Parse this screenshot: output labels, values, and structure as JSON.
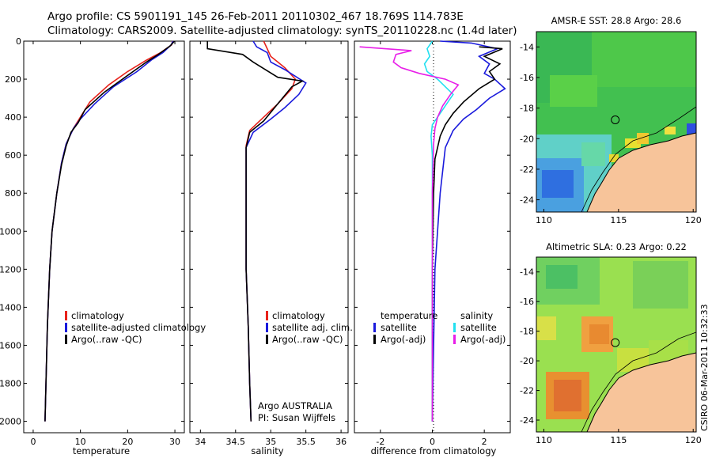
{
  "header": {
    "line1": "Argo profile: CS 5901191_145 26-Feb-2011 20110302_467 18.769S 114.783E",
    "line2": "Climatology: CARS2009. Satellite-adjusted climatology: synTS_20110228.nc (1.4d later)"
  },
  "colors": {
    "climatology": "#e8231c",
    "satellite": "#1a1adc",
    "argo": "#000000",
    "salinity_satellite": "#22e0f0",
    "salinity_argo": "#e81ee8",
    "land": "#f7c49a"
  },
  "chart_data": [
    {
      "type": "line",
      "xlabel": "temperature",
      "xlim": [
        -2,
        32
      ],
      "ylim": [
        2060,
        0
      ],
      "xticks": [
        0,
        10,
        20,
        30
      ],
      "xtick_labels": [
        "0",
        "10",
        "20",
        "30"
      ],
      "yticks": [
        0,
        200,
        400,
        600,
        800,
        1000,
        1200,
        1400,
        1600,
        1800,
        2000
      ],
      "ytick_labels": [
        "0",
        "200",
        "400",
        "600",
        "800",
        "1000",
        "1200",
        "1400",
        "1600",
        "1800",
        "2000"
      ],
      "legend": [
        "climatology",
        "satellite-adjusted climatology",
        "Argo(..raw -QC)"
      ],
      "series": [
        {
          "name": "climatology",
          "color": "#e8231c",
          "x": [
            29.5,
            29.3,
            27,
            24,
            20,
            16,
            12,
            10,
            8.5,
            7,
            6,
            5,
            4,
            3.5,
            3,
            2.7,
            2.5
          ],
          "y": [
            0,
            20,
            60,
            100,
            160,
            230,
            320,
            400,
            460,
            540,
            640,
            800,
            1000,
            1200,
            1500,
            1800,
            2000
          ]
        },
        {
          "name": "satellite-adjusted climatology",
          "color": "#1a1adc",
          "x": [
            29.6,
            29.2,
            27.5,
            25,
            22,
            17,
            13,
            10,
            8.5,
            7,
            6,
            5,
            4,
            3.5,
            3,
            2.7,
            2.5
          ],
          "y": [
            0,
            20,
            60,
            100,
            160,
            240,
            330,
            410,
            460,
            540,
            640,
            800,
            1000,
            1200,
            1500,
            1800,
            2000
          ]
        },
        {
          "name": "Argo(..raw -QC)",
          "color": "#000000",
          "x": [
            29.9,
            29.0,
            26.5,
            24,
            20,
            15,
            11,
            9.5,
            8,
            7,
            6,
            5,
            4,
            3.5,
            3,
            2.7,
            2.5
          ],
          "y": [
            0,
            25,
            70,
            110,
            180,
            270,
            360,
            430,
            480,
            550,
            650,
            800,
            1000,
            1200,
            1500,
            1800,
            2000
          ]
        }
      ]
    },
    {
      "type": "line",
      "xlabel": "salinity",
      "xlim": [
        33.85,
        36.1
      ],
      "ylim": [
        2060,
        0
      ],
      "xticks": [
        34,
        34.5,
        35,
        35.5,
        36
      ],
      "xtick_labels": [
        "34",
        "34.5",
        "35",
        "35.5",
        "36"
      ],
      "legend": [
        "climatology",
        "satellite adj. clim.",
        "Argo(..raw -QC)"
      ],
      "annotations": [
        "Argo AUSTRALIA",
        "PI: Susan Wijffels"
      ],
      "series": [
        {
          "name": "climatology",
          "color": "#e8231c",
          "x": [
            34.9,
            34.95,
            35.0,
            35.1,
            35.2,
            35.35,
            35.3,
            35.1,
            34.9,
            34.7,
            34.65,
            34.65,
            34.65,
            34.65,
            34.68,
            34.7,
            34.72
          ],
          "y": [
            0,
            40,
            80,
            110,
            140,
            200,
            250,
            330,
            400,
            470,
            550,
            800,
            1000,
            1200,
            1500,
            1800,
            2000
          ]
        },
        {
          "name": "satellite adj. clim.",
          "color": "#1a1adc",
          "x": [
            34.75,
            34.8,
            34.95,
            35.0,
            35.2,
            35.5,
            35.4,
            35.2,
            35.0,
            34.75,
            34.65,
            34.65,
            34.65,
            34.65,
            34.68,
            34.7,
            34.72
          ],
          "y": [
            0,
            30,
            60,
            110,
            150,
            220,
            280,
            350,
            410,
            480,
            560,
            800,
            1000,
            1200,
            1500,
            1800,
            2000
          ]
        },
        {
          "name": "Argo(..raw -QC)",
          "color": "#000000",
          "x": [
            34.1,
            34.1,
            34.6,
            34.75,
            35.1,
            35.45,
            35.3,
            35.1,
            34.9,
            34.7,
            34.65,
            34.65,
            34.65,
            34.65,
            34.68,
            34.7,
            34.72
          ],
          "y": [
            0,
            40,
            70,
            110,
            190,
            210,
            240,
            330,
            420,
            480,
            560,
            800,
            1000,
            1200,
            1500,
            1800,
            2000
          ]
        }
      ]
    },
    {
      "type": "line",
      "xlabel": "difference from climatology",
      "xlim": [
        -3,
        3
      ],
      "ylim": [
        2060,
        0
      ],
      "xticks": [
        -2,
        0,
        2
      ],
      "xtick_labels": [
        "-2",
        "0",
        "2"
      ],
      "legend_groups": [
        {
          "title": "temperature",
          "entries": [
            "satellite",
            "Argo(-adj)"
          ]
        },
        {
          "title": "salinity",
          "entries": [
            "satellite",
            "Argo(-adj)"
          ]
        }
      ],
      "series": [
        {
          "name": "temperature satellite",
          "color": "#1a1adc",
          "x": [
            0.3,
            1.5,
            2.5,
            1.8,
            2.2,
            2.0,
            2.4,
            2.8,
            2.2,
            1.7,
            1.2,
            0.8,
            0.5,
            0.3,
            0.1,
            0.05,
            0.0
          ],
          "y": [
            0,
            10,
            40,
            80,
            120,
            170,
            200,
            250,
            300,
            360,
            410,
            470,
            560,
            800,
            1200,
            1600,
            2000
          ]
        },
        {
          "name": "temperature Argo(-adj)",
          "color": "#000000",
          "x": [
            1.8,
            2.7,
            2.0,
            2.6,
            2.2,
            2.4,
            1.8,
            1.2,
            0.8,
            0.5,
            0.3,
            0.2,
            0.1,
            0.05,
            0.0,
            0.0,
            0.0
          ],
          "y": [
            30,
            40,
            80,
            120,
            160,
            200,
            250,
            320,
            380,
            440,
            500,
            560,
            620,
            800,
            1200,
            1600,
            2000
          ]
        },
        {
          "name": "salinity satellite",
          "color": "#22e0f0",
          "x": [
            0.0,
            -0.2,
            -0.1,
            -0.3,
            -0.2,
            0.2,
            0.5,
            0.8,
            0.6,
            0.3,
            0.0,
            -0.05,
            0.0,
            0.0,
            0.0,
            0.0,
            0.0
          ],
          "y": [
            0,
            40,
            80,
            120,
            160,
            200,
            240,
            280,
            320,
            380,
            440,
            500,
            600,
            800,
            1200,
            1600,
            2000
          ]
        },
        {
          "name": "salinity Argo(-adj)",
          "color": "#e81ee8",
          "x": [
            -2.8,
            -0.8,
            -1.4,
            -1.5,
            -1.2,
            -0.5,
            0.5,
            1.0,
            0.7,
            0.4,
            0.2,
            0.1,
            0.05,
            0.0,
            0.0,
            0.0,
            0.0
          ],
          "y": [
            30,
            50,
            70,
            110,
            140,
            170,
            200,
            230,
            280,
            340,
            400,
            460,
            540,
            800,
            1200,
            1600,
            2000
          ]
        }
      ]
    },
    {
      "type": "heatmap",
      "title": "AMSR-E SST: 28.8 Argo: 28.6",
      "xlim": [
        109.5,
        120.2
      ],
      "ylim": [
        -24.8,
        -13.0
      ],
      "xticks": [
        110,
        115,
        120
      ],
      "yticks": [
        -14,
        -16,
        -18,
        -20,
        -22,
        -24
      ],
      "xtick_labels": [
        "110",
        "115",
        "120"
      ],
      "ytick_labels": [
        "-14",
        "-16",
        "-18",
        "-20",
        "-22",
        "-24"
      ],
      "marker": {
        "lon": 114.78,
        "lat": -18.77
      }
    },
    {
      "type": "heatmap",
      "title": "Altimetric SLA: 0.23 Argo: 0.22",
      "xlim": [
        109.5,
        120.2
      ],
      "ylim": [
        -24.8,
        -13.0
      ],
      "xticks": [
        110,
        115,
        120
      ],
      "yticks": [
        -14,
        -16,
        -18,
        -20,
        -22,
        -24
      ],
      "xtick_labels": [
        "110",
        "115",
        "120"
      ],
      "ytick_labels": [
        "-14",
        "-16",
        "-18",
        "-20",
        "-22",
        "-24"
      ],
      "marker": {
        "lon": 114.78,
        "lat": -18.77
      }
    }
  ],
  "footer": {
    "stamp": "CSIRO 06-Mar-2011 10:32:33"
  }
}
